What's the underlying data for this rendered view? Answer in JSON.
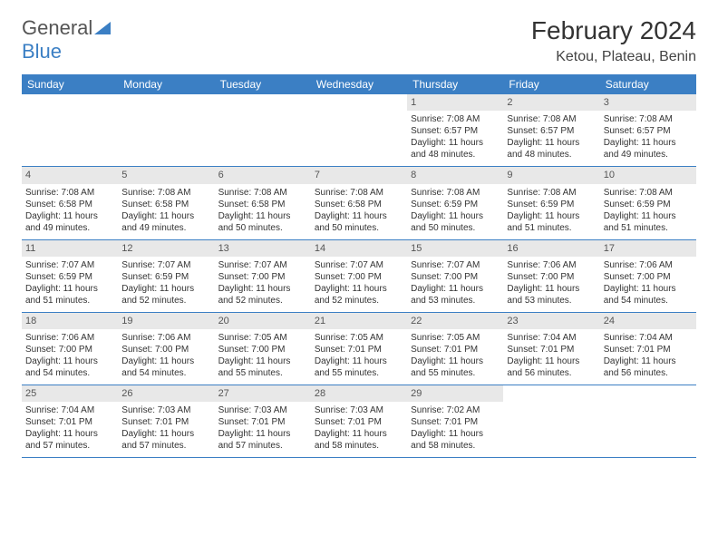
{
  "logo": {
    "part1": "General",
    "part2": "Blue"
  },
  "title": "February 2024",
  "location": "Ketou, Plateau, Benin",
  "colors": {
    "header_bg": "#3b7fc4",
    "header_text": "#ffffff",
    "daynum_bg": "#e8e8e8",
    "border": "#3b7fc4",
    "logo_gray": "#555555",
    "logo_blue": "#3b7fc4"
  },
  "dayNames": [
    "Sunday",
    "Monday",
    "Tuesday",
    "Wednesday",
    "Thursday",
    "Friday",
    "Saturday"
  ],
  "weeks": [
    [
      null,
      null,
      null,
      null,
      {
        "n": "1",
        "sr": "Sunrise: 7:08 AM",
        "ss": "Sunset: 6:57 PM",
        "d1": "Daylight: 11 hours",
        "d2": "and 48 minutes."
      },
      {
        "n": "2",
        "sr": "Sunrise: 7:08 AM",
        "ss": "Sunset: 6:57 PM",
        "d1": "Daylight: 11 hours",
        "d2": "and 48 minutes."
      },
      {
        "n": "3",
        "sr": "Sunrise: 7:08 AM",
        "ss": "Sunset: 6:57 PM",
        "d1": "Daylight: 11 hours",
        "d2": "and 49 minutes."
      }
    ],
    [
      {
        "n": "4",
        "sr": "Sunrise: 7:08 AM",
        "ss": "Sunset: 6:58 PM",
        "d1": "Daylight: 11 hours",
        "d2": "and 49 minutes."
      },
      {
        "n": "5",
        "sr": "Sunrise: 7:08 AM",
        "ss": "Sunset: 6:58 PM",
        "d1": "Daylight: 11 hours",
        "d2": "and 49 minutes."
      },
      {
        "n": "6",
        "sr": "Sunrise: 7:08 AM",
        "ss": "Sunset: 6:58 PM",
        "d1": "Daylight: 11 hours",
        "d2": "and 50 minutes."
      },
      {
        "n": "7",
        "sr": "Sunrise: 7:08 AM",
        "ss": "Sunset: 6:58 PM",
        "d1": "Daylight: 11 hours",
        "d2": "and 50 minutes."
      },
      {
        "n": "8",
        "sr": "Sunrise: 7:08 AM",
        "ss": "Sunset: 6:59 PM",
        "d1": "Daylight: 11 hours",
        "d2": "and 50 minutes."
      },
      {
        "n": "9",
        "sr": "Sunrise: 7:08 AM",
        "ss": "Sunset: 6:59 PM",
        "d1": "Daylight: 11 hours",
        "d2": "and 51 minutes."
      },
      {
        "n": "10",
        "sr": "Sunrise: 7:08 AM",
        "ss": "Sunset: 6:59 PM",
        "d1": "Daylight: 11 hours",
        "d2": "and 51 minutes."
      }
    ],
    [
      {
        "n": "11",
        "sr": "Sunrise: 7:07 AM",
        "ss": "Sunset: 6:59 PM",
        "d1": "Daylight: 11 hours",
        "d2": "and 51 minutes."
      },
      {
        "n": "12",
        "sr": "Sunrise: 7:07 AM",
        "ss": "Sunset: 6:59 PM",
        "d1": "Daylight: 11 hours",
        "d2": "and 52 minutes."
      },
      {
        "n": "13",
        "sr": "Sunrise: 7:07 AM",
        "ss": "Sunset: 7:00 PM",
        "d1": "Daylight: 11 hours",
        "d2": "and 52 minutes."
      },
      {
        "n": "14",
        "sr": "Sunrise: 7:07 AM",
        "ss": "Sunset: 7:00 PM",
        "d1": "Daylight: 11 hours",
        "d2": "and 52 minutes."
      },
      {
        "n": "15",
        "sr": "Sunrise: 7:07 AM",
        "ss": "Sunset: 7:00 PM",
        "d1": "Daylight: 11 hours",
        "d2": "and 53 minutes."
      },
      {
        "n": "16",
        "sr": "Sunrise: 7:06 AM",
        "ss": "Sunset: 7:00 PM",
        "d1": "Daylight: 11 hours",
        "d2": "and 53 minutes."
      },
      {
        "n": "17",
        "sr": "Sunrise: 7:06 AM",
        "ss": "Sunset: 7:00 PM",
        "d1": "Daylight: 11 hours",
        "d2": "and 54 minutes."
      }
    ],
    [
      {
        "n": "18",
        "sr": "Sunrise: 7:06 AM",
        "ss": "Sunset: 7:00 PM",
        "d1": "Daylight: 11 hours",
        "d2": "and 54 minutes."
      },
      {
        "n": "19",
        "sr": "Sunrise: 7:06 AM",
        "ss": "Sunset: 7:00 PM",
        "d1": "Daylight: 11 hours",
        "d2": "and 54 minutes."
      },
      {
        "n": "20",
        "sr": "Sunrise: 7:05 AM",
        "ss": "Sunset: 7:00 PM",
        "d1": "Daylight: 11 hours",
        "d2": "and 55 minutes."
      },
      {
        "n": "21",
        "sr": "Sunrise: 7:05 AM",
        "ss": "Sunset: 7:01 PM",
        "d1": "Daylight: 11 hours",
        "d2": "and 55 minutes."
      },
      {
        "n": "22",
        "sr": "Sunrise: 7:05 AM",
        "ss": "Sunset: 7:01 PM",
        "d1": "Daylight: 11 hours",
        "d2": "and 55 minutes."
      },
      {
        "n": "23",
        "sr": "Sunrise: 7:04 AM",
        "ss": "Sunset: 7:01 PM",
        "d1": "Daylight: 11 hours",
        "d2": "and 56 minutes."
      },
      {
        "n": "24",
        "sr": "Sunrise: 7:04 AM",
        "ss": "Sunset: 7:01 PM",
        "d1": "Daylight: 11 hours",
        "d2": "and 56 minutes."
      }
    ],
    [
      {
        "n": "25",
        "sr": "Sunrise: 7:04 AM",
        "ss": "Sunset: 7:01 PM",
        "d1": "Daylight: 11 hours",
        "d2": "and 57 minutes."
      },
      {
        "n": "26",
        "sr": "Sunrise: 7:03 AM",
        "ss": "Sunset: 7:01 PM",
        "d1": "Daylight: 11 hours",
        "d2": "and 57 minutes."
      },
      {
        "n": "27",
        "sr": "Sunrise: 7:03 AM",
        "ss": "Sunset: 7:01 PM",
        "d1": "Daylight: 11 hours",
        "d2": "and 57 minutes."
      },
      {
        "n": "28",
        "sr": "Sunrise: 7:03 AM",
        "ss": "Sunset: 7:01 PM",
        "d1": "Daylight: 11 hours",
        "d2": "and 58 minutes."
      },
      {
        "n": "29",
        "sr": "Sunrise: 7:02 AM",
        "ss": "Sunset: 7:01 PM",
        "d1": "Daylight: 11 hours",
        "d2": "and 58 minutes."
      },
      null,
      null
    ]
  ]
}
